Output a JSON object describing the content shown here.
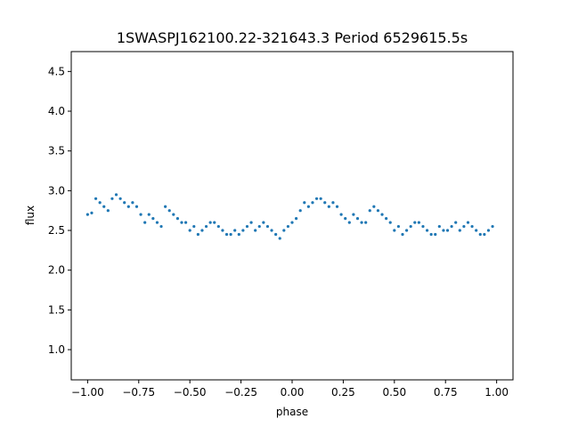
{
  "chart_data": {
    "type": "scatter",
    "title": "1SWASPJ162100.22-321643.3 Period 6529615.5s",
    "xlabel": "phase",
    "ylabel": "flux",
    "xlim": [
      -1.08,
      1.08
    ],
    "ylim": [
      0.62,
      4.75
    ],
    "xticks": [
      -1.0,
      -0.75,
      -0.5,
      -0.25,
      0.0,
      0.25,
      0.5,
      0.75,
      1.0
    ],
    "xtick_labels": [
      "−1.00",
      "−0.75",
      "−0.50",
      "−0.25",
      "0.00",
      "0.25",
      "0.50",
      "0.75",
      "1.00"
    ],
    "yticks": [
      1.0,
      1.5,
      2.0,
      2.5,
      3.0,
      3.5,
      4.0,
      4.5
    ],
    "ytick_labels": [
      "1.0",
      "1.5",
      "2.0",
      "2.5",
      "3.0",
      "3.5",
      "4.0",
      "4.5"
    ],
    "grid": false,
    "marker_color": "#1f77b4",
    "series": [
      {
        "x": [
          -1.0,
          -0.98,
          -0.96,
          -0.94,
          -0.92,
          -0.9,
          -0.88,
          -0.86,
          -0.84,
          -0.82,
          -0.8,
          -0.78,
          -0.76,
          -0.74,
          -0.72,
          -0.7,
          -0.68,
          -0.66,
          -0.64,
          -0.62,
          -0.6,
          -0.58,
          -0.56,
          -0.54,
          -0.52,
          -0.5,
          -0.48,
          -0.46,
          -0.44,
          -0.42,
          -0.4,
          -0.38,
          -0.36,
          -0.34,
          -0.32,
          -0.3,
          -0.28,
          -0.26,
          -0.24,
          -0.22,
          -0.2,
          -0.18,
          -0.16,
          -0.14,
          -0.12,
          -0.1,
          -0.08,
          -0.06,
          -0.04,
          -0.02,
          0.0,
          0.02,
          0.04,
          0.06,
          0.08,
          0.1,
          0.12,
          0.14,
          0.16,
          0.18,
          0.2,
          0.22,
          0.24,
          0.26,
          0.28,
          0.3,
          0.32,
          0.34,
          0.36,
          0.38,
          0.4,
          0.42,
          0.44,
          0.46,
          0.48,
          0.5,
          0.52,
          0.54,
          0.56,
          0.58,
          0.6,
          0.62,
          0.64,
          0.66,
          0.68,
          0.7,
          0.72,
          0.74,
          0.76,
          0.78,
          0.8,
          0.82,
          0.84,
          0.86,
          0.88,
          0.9,
          0.92,
          0.94,
          0.96,
          0.98
        ],
        "y": [
          2.7,
          2.72,
          2.9,
          2.85,
          2.8,
          2.75,
          2.9,
          2.95,
          2.9,
          2.85,
          2.8,
          2.85,
          2.8,
          2.7,
          2.6,
          2.7,
          2.65,
          2.6,
          2.55,
          2.8,
          2.75,
          2.7,
          2.65,
          2.6,
          2.6,
          2.5,
          2.55,
          2.45,
          2.5,
          2.55,
          2.6,
          2.6,
          2.55,
          2.5,
          2.45,
          2.45,
          2.5,
          2.45,
          2.5,
          2.55,
          2.6,
          2.5,
          2.55,
          2.6,
          2.55,
          2.5,
          2.45,
          2.4,
          2.5,
          2.55,
          2.6,
          2.65,
          2.75,
          2.85,
          2.8,
          2.85,
          2.9,
          2.9,
          2.85,
          2.8,
          2.85,
          2.8,
          2.7,
          2.65,
          2.6,
          2.7,
          2.65,
          2.6,
          2.6,
          2.75,
          2.8,
          2.75,
          2.7,
          2.65,
          2.6,
          2.5,
          2.55,
          2.45,
          2.5,
          2.55,
          2.6,
          2.6,
          2.55,
          2.5,
          2.45,
          2.45,
          2.55,
          2.5,
          2.5,
          2.55,
          2.6,
          2.5,
          2.55,
          2.6,
          2.55,
          2.5,
          2.45,
          2.45,
          2.5,
          2.55
        ]
      }
    ]
  }
}
